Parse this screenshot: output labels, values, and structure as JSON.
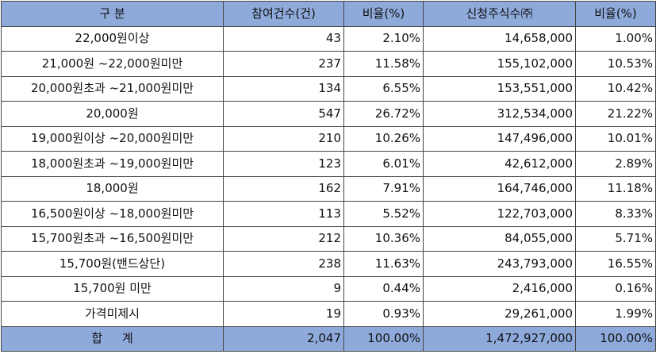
{
  "headers": [
    "구 분",
    "참여건수(건)",
    "비율(%)",
    "신청주식수㈜",
    "비율(%)"
  ],
  "rows": [
    [
      "22,000원이상",
      "43",
      "2.10%",
      "14,658,000",
      "1.00%"
    ],
    [
      "21,000원 ~22,000원미만",
      "237",
      "11.58%",
      "155,102,000",
      "10.53%"
    ],
    [
      "20,000원초과 ~21,000원미만",
      "134",
      "6.55%",
      "153,551,000",
      "10.42%"
    ],
    [
      "20,000원",
      "547",
      "26.72%",
      "312,534,000",
      "21.22%"
    ],
    [
      "19,000원이상 ~20,000원미만",
      "210",
      "10.26%",
      "147,496,000",
      "10.01%"
    ],
    [
      "18,000원초과 ~19,000원미만",
      "123",
      "6.01%",
      "42,612,000",
      "2.89%"
    ],
    [
      "18,000원",
      "162",
      "7.91%",
      "164,746,000",
      "11.18%"
    ],
    [
      "16,500원이상 ~18,000원미만",
      "113",
      "5.52%",
      "122,703,000",
      "8.33%"
    ],
    [
      "15,700원초과 ~16,500원미만",
      "212",
      "10.36%",
      "84,055,000",
      "5.71%"
    ],
    [
      "15,700원(밴드상단)",
      "238",
      "11.63%",
      "243,793,000",
      "16.55%"
    ],
    [
      "15,700원 미만",
      "9",
      "0.44%",
      "2,416,000",
      "0.16%"
    ],
    [
      "가격미제시",
      "19",
      "0.93%",
      "29,261,000",
      "1.99%"
    ]
  ],
  "total": [
    "합 계",
    "2,047",
    "100.00%",
    "1,472,927,000",
    "100.00%"
  ]
}
